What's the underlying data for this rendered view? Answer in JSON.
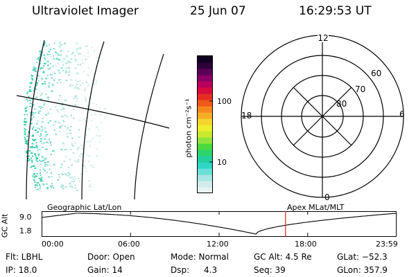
{
  "header": {
    "instrument": "Ultraviolet Imager",
    "date": "25 Jun 07",
    "time": "16:29:53 UT"
  },
  "colorbar": {
    "unit": "photon cm⁻²s⁻¹",
    "tick_100": "100",
    "tick_10": "10",
    "colors": [
      "#e9f3f3",
      "#d1ecec",
      "#a7e5e3",
      "#6adfd7",
      "#2fd6c4",
      "#23cf9e",
      "#2dd36d",
      "#49d93f",
      "#8fe33a",
      "#c8ea30",
      "#ecee2e",
      "#f5d42b",
      "#f7ad27",
      "#f5891f",
      "#ef5a1a",
      "#e52d24",
      "#d80b3e",
      "#b8005a",
      "#8a0064",
      "#5b0059",
      "#2e0038",
      "#120020"
    ]
  },
  "polar": {
    "mlt_12": "12",
    "mlt_18": "18",
    "mlt_6": "6",
    "mlt_0": "0",
    "lat_60": "60",
    "lat_70": "70",
    "lat_80": "80"
  },
  "orbit": {
    "left_title": "Geographic Lat/Lon",
    "right_title": "Apex  MLat/MLT",
    "yaxis_label": "GC Alt",
    "ymax": "9.0",
    "ymin": "1.8",
    "time_ticks": [
      "00:00",
      "06:00",
      "12:00",
      "18:00",
      "23:59"
    ],
    "marker_hour": 16.5,
    "marker_color": "#e0201c"
  },
  "status": {
    "filter": "Flt: LBHL",
    "door": "Door: Open",
    "mode": "Mode: Normal",
    "gc_alt": "GC Alt: 4.5 Re",
    "glat": "GLat: −52.3",
    "ip": "IP: 18.0",
    "gain": "Gain: 14",
    "dsp_label": "Dsp:",
    "dsp_value": "4.3",
    "seq": "Seq: 39",
    "glon": "GLon: 357.9"
  }
}
